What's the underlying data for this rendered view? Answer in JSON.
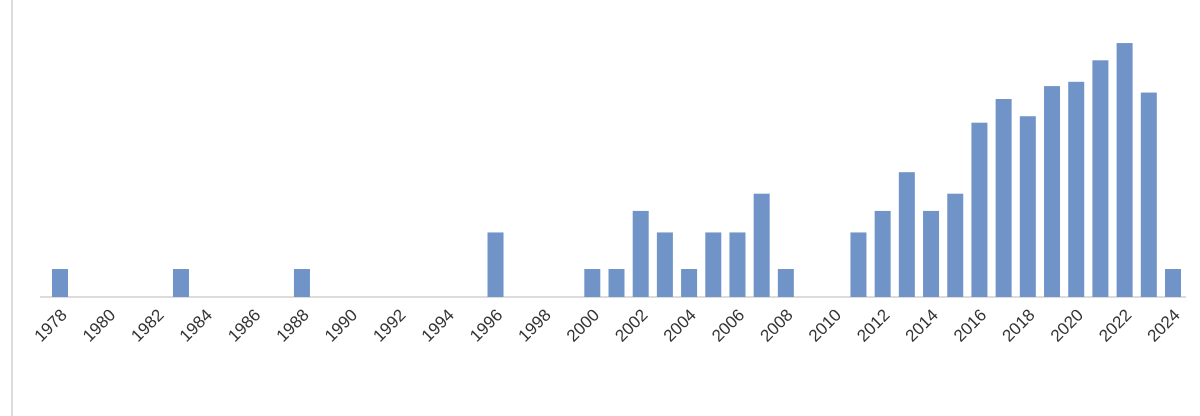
{
  "chart_data": {
    "type": "bar",
    "categories": [
      "1978",
      null,
      "1980",
      null,
      "1982",
      null,
      "1984",
      null,
      "1986",
      null,
      "1988",
      null,
      "1990",
      null,
      "1992",
      null,
      "1994",
      null,
      "1996",
      null,
      "1998",
      null,
      "2000",
      null,
      "2002",
      null,
      "2004",
      null,
      "2006",
      null,
      "2008",
      null,
      "2010",
      null,
      "2012",
      null,
      "2014",
      null,
      "2016",
      null,
      "2018",
      null,
      "2020",
      null,
      "2022",
      null,
      "2024"
    ],
    "values": [
      1.3,
      0,
      0,
      0,
      0,
      1.3,
      0,
      0,
      0,
      0,
      1.3,
      0,
      0,
      0,
      0,
      0,
      0,
      0,
      3,
      0,
      0,
      0,
      1.3,
      1.3,
      4,
      3,
      1.3,
      3,
      3,
      4.8,
      1.3,
      0,
      0,
      3,
      4,
      5.8,
      4,
      4.8,
      8.1,
      9.2,
      8.4,
      9.8,
      10,
      11,
      11.8,
      9.5,
      1.3
    ],
    "color": "#7094c8",
    "ylim": [
      0,
      12.5
    ]
  }
}
